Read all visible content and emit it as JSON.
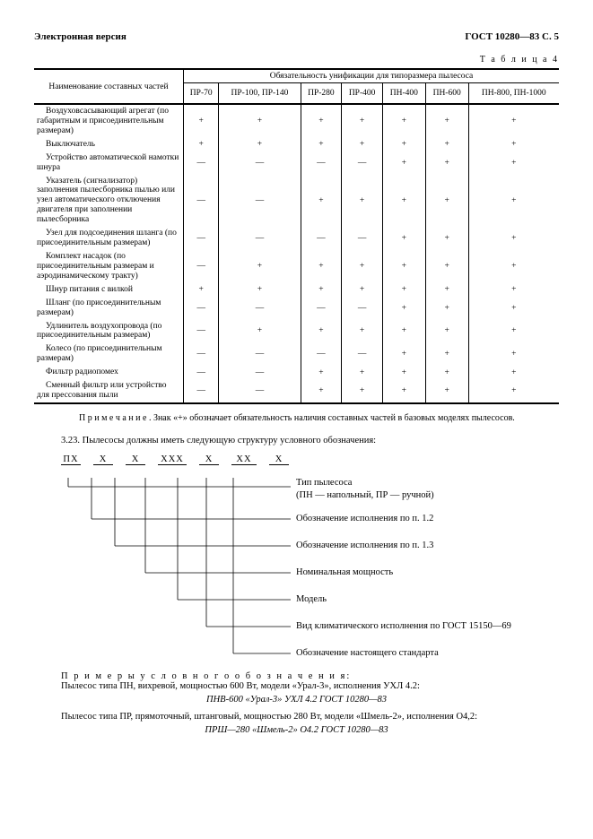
{
  "header": {
    "left": "Электронная версия",
    "right": "ГОСТ 10280—83 С. 5"
  },
  "table": {
    "label": "Т а б л и ц а   4",
    "name_header": "Наименование составных частей",
    "group_header": "Обязательность унификации для типоразмера пылесоса",
    "columns": [
      "ПР-70",
      "ПР-100, ПР-140",
      "ПР-280",
      "ПР-400",
      "ПН-400",
      "ПН-600",
      "ПН-800, ПН-1000"
    ],
    "rows": [
      {
        "name": "Воздуховсасывающий агрегат (по габаритным и присоединительным размерам)",
        "v": [
          "+",
          "+",
          "+",
          "+",
          "+",
          "+",
          "+"
        ]
      },
      {
        "name": "Выключатель",
        "v": [
          "+",
          "+",
          "+",
          "+",
          "+",
          "+",
          "+"
        ]
      },
      {
        "name": "Устройство автоматической намотки шнура",
        "v": [
          "—",
          "—",
          "—",
          "—",
          "+",
          "+",
          "+"
        ]
      },
      {
        "name": "Указатель (сигнализатор) заполнения пылесборника пылью или узел автоматического отключения двигателя при заполнении пылесборника",
        "v": [
          "—",
          "—",
          "+",
          "+",
          "+",
          "+",
          "+"
        ]
      },
      {
        "name": "Узел для подсоединения шланга (по присоединительным размерам)",
        "v": [
          "—",
          "—",
          "—",
          "—",
          "+",
          "+",
          "+"
        ]
      },
      {
        "name": "Комплект насадок (по присоединительным размерам и аэродинамическому тракту)",
        "v": [
          "—",
          "+",
          "+",
          "+",
          "+",
          "+",
          "+"
        ]
      },
      {
        "name": "Шнур питания с вилкой",
        "v": [
          "+",
          "+",
          "+",
          "+",
          "+",
          "+",
          "+"
        ]
      },
      {
        "name": "Шланг (по присоединительным размерам)",
        "v": [
          "—",
          "—",
          "—",
          "—",
          "+",
          "+",
          "+"
        ]
      },
      {
        "name": "Удлинитель воздухопровода (по присоединительным размерам)",
        "v": [
          "—",
          "+",
          "+",
          "+",
          "+",
          "+",
          "+"
        ]
      },
      {
        "name": "Колесо (по присоединительным размерам)",
        "v": [
          "—",
          "—",
          "—",
          "—",
          "+",
          "+",
          "+"
        ]
      },
      {
        "name": "Фильтр радиопомех",
        "v": [
          "—",
          "—",
          "+",
          "+",
          "+",
          "+",
          "+"
        ]
      },
      {
        "name": "Сменный фильтр или устройство для прессования пыли",
        "v": [
          "—",
          "—",
          "+",
          "+",
          "+",
          "+",
          "+"
        ]
      }
    ]
  },
  "note": "П р и м е ч а н и е . Знак «+» обозначает обязательность наличия составных частей в базовых моделях пылесосов.",
  "section": "3.23.  Пылесосы должны иметь следующую структуру условного обозначения:",
  "code_parts": [
    "ПХ",
    "Х",
    "Х",
    "ХХХ",
    "Х",
    "ХХ",
    "Х"
  ],
  "struct_labels": [
    "Тип пылесоса",
    "(ПН — напольный, ПР — ручной)",
    "Обозначение исполнения по п. 1.2",
    "Обозначение исполнения по п. 1.3",
    "Номинальная мощность",
    "Модель",
    "Вид климатического исполнения по ГОСТ 15150—69",
    "Обозначение настоящего стандарта"
  ],
  "examples": {
    "header": "П р и м е р ы   у с л о в н о г о   о б о з н а ч е н и я:",
    "line1": "Пылесос типа ПН, вихревой, мощностью 600 Вт, модели «Урал-3», исполнения УХЛ 4.2:",
    "italic1": "ПНВ-600 «Урал-3» УХЛ 4.2 ГОСТ 10280—83",
    "line2": "Пылесос типа ПР, прямоточный, штанговый, мощностью 280 Вт, модели «Шмель-2», исполнения О4,2:",
    "italic2": "ПРШ—280 «Шмель-2» О4.2 ГОСТ 10280—83"
  }
}
